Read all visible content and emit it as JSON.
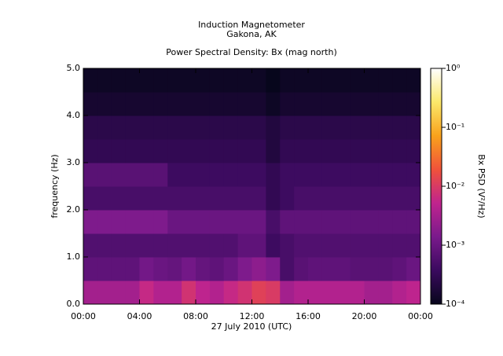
{
  "chart_data": {
    "type": "heatmap",
    "title": [
      "Induction Magnetometer",
      "Gakona, AK"
    ],
    "subtitle": "Power Spectral Density: Bx (mag north)",
    "x_label": "27 July 2010 (UTC)",
    "y_label": "frequency (Hz)",
    "colorbar_label": "Bx PSD (V²/Hz)",
    "xbins": [
      0,
      1,
      2,
      3,
      4,
      5,
      6,
      7,
      8,
      9,
      10,
      11,
      12,
      13,
      14,
      15,
      16,
      17,
      18,
      19,
      20,
      21,
      22,
      23,
      24
    ],
    "ybins": [
      0,
      0.5,
      1.0,
      1.5,
      2.0,
      2.5,
      3.0,
      3.5,
      4.0,
      4.5,
      5.0
    ],
    "values": [
      [
        0.003,
        0.003,
        0.003,
        0.003,
        0.006,
        0.004,
        0.004,
        0.008,
        0.005,
        0.004,
        0.006,
        0.008,
        0.012,
        0.01,
        0.003,
        0.004,
        0.004,
        0.004,
        0.004,
        0.004,
        0.003,
        0.003,
        0.004,
        0.005
      ],
      [
        0.0008,
        0.0008,
        0.0008,
        0.0008,
        0.0012,
        0.001,
        0.0009,
        0.0012,
        0.0009,
        0.0008,
        0.001,
        0.0015,
        0.002,
        0.0015,
        0.0005,
        0.0007,
        0.0008,
        0.0008,
        0.0008,
        0.0007,
        0.0007,
        0.0007,
        0.0008,
        0.001
      ],
      [
        0.0006,
        0.0006,
        0.0006,
        0.0006,
        0.0006,
        0.0006,
        0.0006,
        0.0006,
        0.0006,
        0.0006,
        0.0006,
        0.0008,
        0.0008,
        0.0004,
        0.0005,
        0.0006,
        0.0006,
        0.0006,
        0.0006,
        0.0006,
        0.0006,
        0.0006,
        0.0006,
        0.0006
      ],
      [
        0.0015,
        0.0015,
        0.0015,
        0.0015,
        0.0015,
        0.0015,
        0.001,
        0.001,
        0.001,
        0.001,
        0.001,
        0.001,
        0.001,
        0.0005,
        0.0008,
        0.0008,
        0.0008,
        0.0008,
        0.0008,
        0.0008,
        0.0008,
        0.0008,
        0.0008,
        0.0008
      ],
      [
        0.0005,
        0.0005,
        0.0005,
        0.0005,
        0.0005,
        0.0005,
        0.0005,
        0.0005,
        0.0005,
        0.0005,
        0.0005,
        0.0005,
        0.0005,
        0.0003,
        0.0004,
        0.0005,
        0.0005,
        0.0005,
        0.0005,
        0.0005,
        0.0005,
        0.0005,
        0.0005,
        0.0005
      ],
      [
        0.0007,
        0.0007,
        0.0007,
        0.0007,
        0.0007,
        0.0007,
        0.0004,
        0.0004,
        0.0004,
        0.0004,
        0.0004,
        0.0004,
        0.0004,
        0.0003,
        0.0004,
        0.0004,
        0.0004,
        0.0004,
        0.0004,
        0.0004,
        0.0004,
        0.0004,
        0.0004,
        0.0004
      ],
      [
        0.0003,
        0.0003,
        0.0003,
        0.0003,
        0.0003,
        0.0003,
        0.0003,
        0.0003,
        0.0003,
        0.0003,
        0.0003,
        0.0003,
        0.0003,
        0.0002,
        0.0003,
        0.0003,
        0.0003,
        0.0003,
        0.0003,
        0.0003,
        0.0003,
        0.0003,
        0.0003,
        0.0003
      ],
      [
        0.00025,
        0.00025,
        0.00025,
        0.00025,
        0.00025,
        0.00025,
        0.00025,
        0.00025,
        0.00025,
        0.00025,
        0.00025,
        0.00025,
        0.00025,
        0.0002,
        0.00025,
        0.00025,
        0.00025,
        0.00025,
        0.00025,
        0.00025,
        0.00025,
        0.00025,
        0.00025,
        0.00025
      ],
      [
        0.00015,
        0.00015,
        0.00015,
        0.00015,
        0.00015,
        0.00015,
        0.00015,
        0.00015,
        0.00015,
        0.00015,
        0.00015,
        0.00015,
        0.00015,
        0.00012,
        0.00015,
        0.00015,
        0.00015,
        0.00015,
        0.00015,
        0.00015,
        0.00015,
        0.00015,
        0.00015,
        0.00015
      ],
      [
        0.00012,
        0.00012,
        0.00012,
        0.00012,
        0.00012,
        0.00012,
        0.00012,
        0.00012,
        0.00012,
        0.00012,
        0.00012,
        0.00012,
        0.00012,
        0.0001,
        0.00012,
        0.00012,
        0.00012,
        0.00012,
        0.00012,
        0.00012,
        0.00012,
        0.00012,
        0.00012,
        0.00012
      ]
    ],
    "xlim": [
      0,
      24
    ],
    "xticks": [
      {
        "value": 0,
        "label": "00:00"
      },
      {
        "value": 4,
        "label": "04:00"
      },
      {
        "value": 8,
        "label": "08:00"
      },
      {
        "value": 12,
        "label": "12:00"
      },
      {
        "value": 16,
        "label": "16:00"
      },
      {
        "value": 20,
        "label": "20:00"
      },
      {
        "value": 24,
        "label": "00:00"
      }
    ],
    "ylim": [
      0,
      5.0
    ],
    "yticks": [
      {
        "value": 0,
        "label": "0.0"
      },
      {
        "value": 1,
        "label": "1.0"
      },
      {
        "value": 2,
        "label": "2.0"
      },
      {
        "value": 3,
        "label": "3.0"
      },
      {
        "value": 4,
        "label": "4.0"
      },
      {
        "value": 5,
        "label": "5.0"
      }
    ],
    "zlim": [
      0.0001,
      1
    ],
    "zscale": "log",
    "zticks": [
      {
        "value": 0.0001,
        "label": "10⁻⁴"
      },
      {
        "value": 0.001,
        "label": "10⁻³"
      },
      {
        "value": 0.01,
        "label": "10⁻²"
      },
      {
        "value": 0.1,
        "label": "10⁻¹"
      },
      {
        "value": 1,
        "label": "10⁰"
      }
    ],
    "colormap": [
      "#07061c",
      "#3a0a5e",
      "#7a1a8c",
      "#c0248e",
      "#f0523a",
      "#f9a21c",
      "#fbe86a",
      "#ffffff"
    ]
  }
}
